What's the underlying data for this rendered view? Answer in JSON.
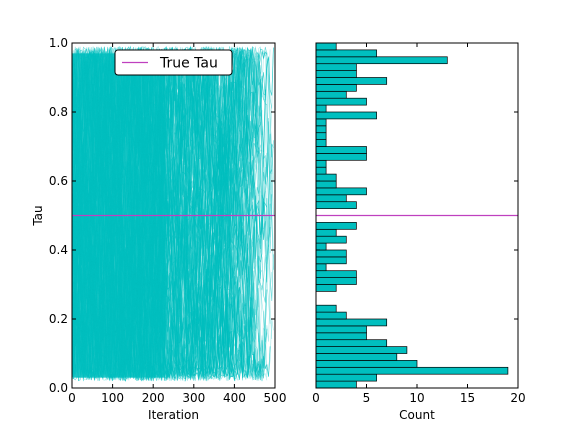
{
  "chart_data": [
    {
      "type": "line",
      "title": "",
      "xlabel": "Iteration",
      "ylabel": "Tau",
      "xlim": [
        0,
        500
      ],
      "ylim": [
        0.0,
        1.0
      ],
      "xticks": [
        0,
        100,
        200,
        300,
        400,
        500
      ],
      "yticks": [
        0.0,
        0.2,
        0.4,
        0.6,
        0.8,
        1.0
      ],
      "xtick_labels": [
        "0",
        "100",
        "200",
        "300",
        "400",
        "500"
      ],
      "ytick_labels": [
        "0.0",
        "0.2",
        "0.4",
        "0.6",
        "0.8",
        "1.0"
      ],
      "trace_color": "#00bfbf",
      "reference_line": {
        "name": "True Tau",
        "y": 0.5,
        "color": "#bf40bf"
      },
      "legend": {
        "entries": [
          "True Tau"
        ],
        "position": "upper-center"
      },
      "grid": false
    },
    {
      "type": "bar",
      "orientation": "horizontal",
      "title": "",
      "xlabel": "Count",
      "ylabel": "",
      "xlim": [
        0,
        20
      ],
      "ylim": [
        0.0,
        1.0
      ],
      "xticks": [
        0,
        5,
        10,
        15,
        20
      ],
      "xtick_labels": [
        "0",
        "5",
        "10",
        "15",
        "20"
      ],
      "bar_color": "#00bfbf",
      "bin_width": 0.02,
      "bin_starts": [
        0.0,
        0.02,
        0.04,
        0.06,
        0.08,
        0.1,
        0.12,
        0.14,
        0.16,
        0.18,
        0.2,
        0.22,
        0.24,
        0.26,
        0.28,
        0.3,
        0.32,
        0.34,
        0.36,
        0.38,
        0.4,
        0.42,
        0.44,
        0.46,
        0.48,
        0.5,
        0.52,
        0.54,
        0.56,
        0.58,
        0.6,
        0.62,
        0.64,
        0.66,
        0.68,
        0.7,
        0.72,
        0.74,
        0.76,
        0.78,
        0.8,
        0.82,
        0.84,
        0.86,
        0.88,
        0.9,
        0.92,
        0.94,
        0.96,
        0.98
      ],
      "counts": [
        4,
        6,
        19,
        10,
        8,
        9,
        7,
        5,
        5,
        7,
        3,
        2,
        0,
        0,
        2,
        4,
        4,
        1,
        3,
        3,
        1,
        3,
        2,
        4,
        0,
        0,
        4,
        3,
        5,
        2,
        2,
        1,
        1,
        5,
        5,
        1,
        1,
        1,
        1,
        6,
        1,
        5,
        3,
        4,
        7,
        4,
        4,
        13,
        6,
        2
      ],
      "reference_line": {
        "y": 0.5,
        "color": "#bf40bf"
      },
      "grid": false
    }
  ]
}
